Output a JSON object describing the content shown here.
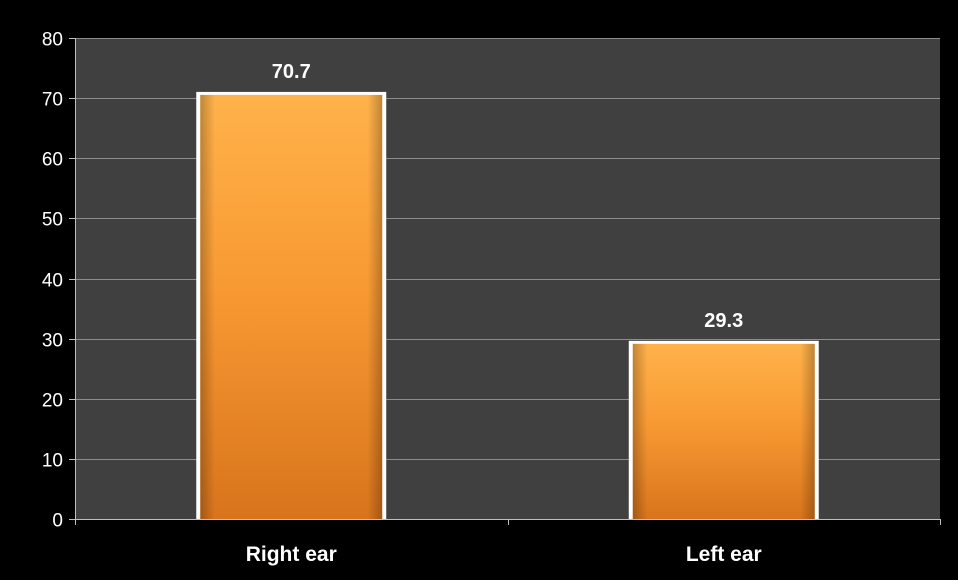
{
  "chart_data": {
    "type": "bar",
    "categories": [
      "Right ear",
      "Left ear"
    ],
    "values": [
      70.7,
      29.3
    ],
    "data_labels": [
      "70.7",
      "29.3"
    ],
    "title": "",
    "xlabel": "",
    "ylabel": "",
    "ylim": [
      0,
      80
    ],
    "yticks": [
      0,
      10,
      20,
      30,
      40,
      50,
      60,
      70,
      80
    ],
    "grid": true,
    "legend": "none"
  },
  "colors": {
    "page_background": "#000000",
    "plot_background": "#404040",
    "gridline": "#8c8c8c",
    "axis": "#bfbfbf",
    "bar_top": "#ffb24a",
    "bar_middle": "#f89a33",
    "bar_bottom": "#d8741c",
    "bar_border": "#ffffff",
    "text": "#ffffff"
  }
}
